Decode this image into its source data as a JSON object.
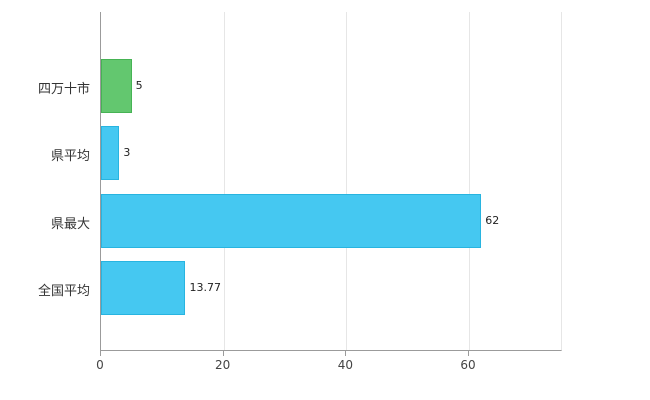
{
  "chart_data": {
    "type": "bar",
    "orientation": "horizontal",
    "title": "",
    "xlabel": "",
    "ylabel": "",
    "categories": [
      "四万十市",
      "県平均",
      "県最大",
      "全国平均"
    ],
    "values": [
      5,
      3,
      62,
      13.77
    ],
    "value_labels": [
      "5",
      "3",
      "62",
      "13.77"
    ],
    "bar_fill_colors": [
      "#63c76f",
      "#45c8f1",
      "#45c8f1",
      "#45c8f1"
    ],
    "bar_border_colors": [
      "#46b354",
      "#28b4e0",
      "#28b4e0",
      "#28b4e0"
    ],
    "x_ticks": [
      0,
      20,
      40,
      60
    ],
    "x_tick_labels": [
      "0",
      "20",
      "40",
      "60"
    ],
    "xlim": [
      0,
      75
    ],
    "grid": true,
    "legend": "none",
    "colors": {
      "axis": "#9b9b9b",
      "gridline": "#e6e6e6",
      "text": "#333333",
      "background": "#ffffff"
    }
  }
}
